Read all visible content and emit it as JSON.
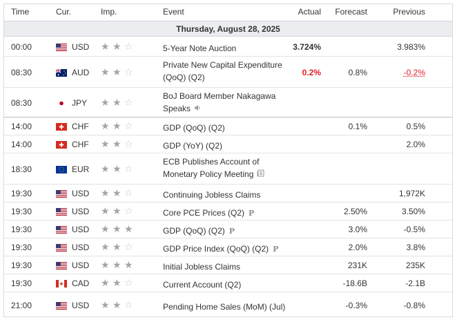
{
  "headers": {
    "time": "Time",
    "cur": "Cur.",
    "imp": "Imp.",
    "event": "Event",
    "actual": "Actual",
    "forecast": "Forecast",
    "previous": "Previous"
  },
  "day": "Thursday, August 28, 2025",
  "rows": [
    {
      "time": "00:00",
      "flag": "us-flag-icon",
      "cur": "USD",
      "imp": 2,
      "event": "5-Year Note Auction",
      "icon": "",
      "actual": "3.724%",
      "actual_neg": false,
      "forecast": "",
      "previous": "3.983%",
      "previous_neg": false
    },
    {
      "time": "08:30",
      "flag": "au-flag-icon",
      "cur": "AUD",
      "imp": 2,
      "event": "Private New Capital Expenditure (QoQ) (Q2)",
      "icon": "",
      "actual": "0.2%",
      "actual_neg": true,
      "forecast": "0.8%",
      "previous": "-0.2%",
      "previous_neg": true
    },
    {
      "time": "08:30",
      "flag": "jp-flag-icon",
      "cur": "JPY",
      "imp": 2,
      "event": "BoJ Board Member Nakagawa Speaks",
      "icon": "speaker-icon",
      "actual": "",
      "actual_neg": false,
      "forecast": "",
      "previous": "",
      "previous_neg": false
    },
    {
      "time": "14:00",
      "flag": "ch-flag-icon",
      "cur": "CHF",
      "imp": 2,
      "event": "GDP (QoQ) (Q2)",
      "icon": "",
      "actual": "",
      "actual_neg": false,
      "forecast": "0.1%",
      "previous": "0.5%",
      "previous_neg": false
    },
    {
      "time": "14:00",
      "flag": "ch-flag-icon",
      "cur": "CHF",
      "imp": 2,
      "event": "GDP (YoY) (Q2)",
      "icon": "",
      "actual": "",
      "actual_neg": false,
      "forecast": "",
      "previous": "2.0%",
      "previous_neg": false
    },
    {
      "time": "18:30",
      "flag": "eu-flag-icon",
      "cur": "EUR",
      "imp": 2,
      "event": "ECB Publishes Account of Monetary Policy Meeting",
      "icon": "document-icon",
      "actual": "",
      "actual_neg": false,
      "forecast": "",
      "previous": "",
      "previous_neg": false
    },
    {
      "time": "19:30",
      "flag": "us-flag-icon",
      "cur": "USD",
      "imp": 2,
      "event": "Continuing Jobless Claims",
      "icon": "",
      "actual": "",
      "actual_neg": false,
      "forecast": "",
      "previous": "1,972K",
      "previous_neg": false
    },
    {
      "time": "19:30",
      "flag": "us-flag-icon",
      "cur": "USD",
      "imp": 2,
      "event": "Core PCE Prices (Q2)",
      "icon": "preliminary-icon",
      "actual": "",
      "actual_neg": false,
      "forecast": "2.50%",
      "previous": "3.50%",
      "previous_neg": false
    },
    {
      "time": "19:30",
      "flag": "us-flag-icon",
      "cur": "USD",
      "imp": 3,
      "event": "GDP (QoQ) (Q2)",
      "icon": "preliminary-icon",
      "actual": "",
      "actual_neg": false,
      "forecast": "3.0%",
      "previous": "-0.5%",
      "previous_neg": false
    },
    {
      "time": "19:30",
      "flag": "us-flag-icon",
      "cur": "USD",
      "imp": 2,
      "event": "GDP Price Index (QoQ) (Q2)",
      "icon": "preliminary-icon",
      "actual": "",
      "actual_neg": false,
      "forecast": "2.0%",
      "previous": "3.8%",
      "previous_neg": false
    },
    {
      "time": "19:30",
      "flag": "us-flag-icon",
      "cur": "USD",
      "imp": 3,
      "event": "Initial Jobless Claims",
      "icon": "",
      "actual": "",
      "actual_neg": false,
      "forecast": "231K",
      "previous": "235K",
      "previous_neg": false
    },
    {
      "time": "19:30",
      "flag": "ca-flag-icon",
      "cur": "CAD",
      "imp": 2,
      "event": "Current Account (Q2)",
      "icon": "",
      "actual": "",
      "actual_neg": false,
      "forecast": "-18.6B",
      "previous": "-2.1B",
      "previous_neg": false
    },
    {
      "time": "21:00",
      "flag": "us-flag-icon",
      "cur": "USD",
      "imp": 2,
      "event": "Pending Home Sales (MoM) (Jul)",
      "icon": "",
      "actual": "",
      "actual_neg": false,
      "forecast": "-0.3%",
      "previous": "-0.8%",
      "previous_neg": false
    }
  ],
  "preliminary_mark": "P",
  "colors": {
    "negative": "#e31e24",
    "header_bg": "#ecedf1",
    "star_on": "#a4a4a4",
    "star_off": "#c9c9c9"
  }
}
